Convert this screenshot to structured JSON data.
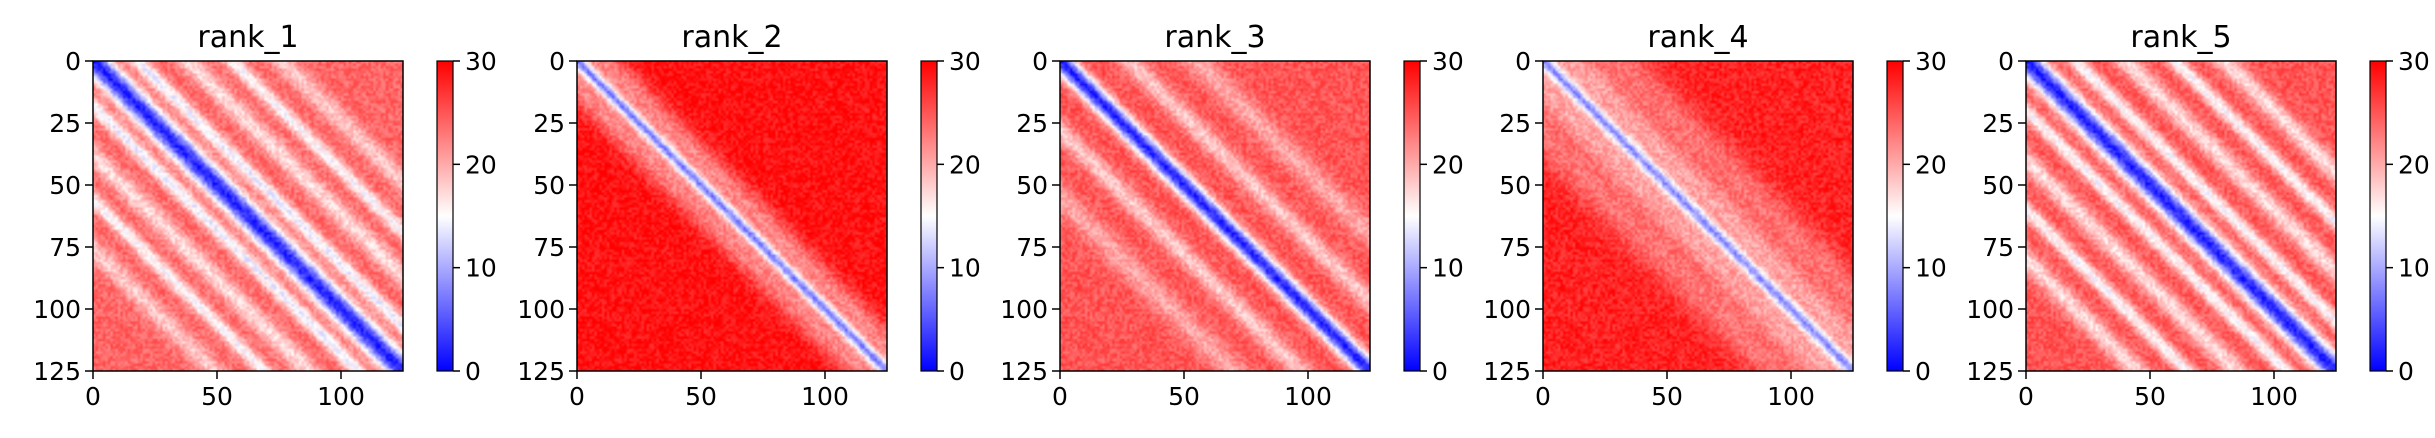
{
  "chart_data": [
    {
      "type": "heatmap",
      "title": "rank_1",
      "xlim": [
        0,
        125
      ],
      "ylim": [
        125,
        0
      ],
      "x_ticks": [
        "0",
        "50",
        "100"
      ],
      "y_ticks": [
        "0",
        "25",
        "50",
        "75",
        "100",
        "125"
      ],
      "colorbar": {
        "range": [
          0,
          30
        ],
        "ticks": [
          "0",
          "10",
          "20",
          "30"
        ],
        "colormap": "bwr"
      },
      "matrix_size": 125,
      "pattern": {
        "background": 24,
        "diagonal_width": 5,
        "off_diagonal_bands": [
          {
            "offset": 18,
            "value": 14,
            "width": 3
          },
          {
            "offset": 38,
            "value": 17,
            "width": 4
          },
          {
            "offset": 56,
            "value": 15,
            "width": 3
          },
          {
            "offset": 76,
            "value": 18,
            "width": 4
          }
        ]
      }
    },
    {
      "type": "heatmap",
      "title": "rank_2",
      "xlim": [
        0,
        125
      ],
      "ylim": [
        125,
        0
      ],
      "x_ticks": [
        "0",
        "50",
        "100"
      ],
      "y_ticks": [
        "0",
        "25",
        "50",
        "75",
        "100",
        "125"
      ],
      "colorbar": {
        "range": [
          0,
          30
        ],
        "ticks": [
          "0",
          "10",
          "20",
          "30"
        ],
        "colormap": "bwr"
      },
      "matrix_size": 125,
      "pattern": {
        "background": 29,
        "diagonal_width": 4,
        "off_diagonal_bands": [
          {
            "offset": 10,
            "value": 22,
            "width": 6
          }
        ]
      }
    },
    {
      "type": "heatmap",
      "title": "rank_3",
      "xlim": [
        0,
        125
      ],
      "ylim": [
        125,
        0
      ],
      "x_ticks": [
        "0",
        "50",
        "100"
      ],
      "y_ticks": [
        "0",
        "25",
        "50",
        "75",
        "100",
        "125"
      ],
      "colorbar": {
        "range": [
          0,
          30
        ],
        "ticks": [
          "0",
          "10",
          "20",
          "30"
        ],
        "colormap": "bwr"
      },
      "matrix_size": 125,
      "pattern": {
        "background": 25,
        "diagonal_width": 4,
        "off_diagonal_bands": [
          {
            "offset": 28,
            "value": 18,
            "width": 4
          },
          {
            "offset": 55,
            "value": 20,
            "width": 5
          }
        ]
      }
    },
    {
      "type": "heatmap",
      "title": "rank_4",
      "xlim": [
        0,
        125
      ],
      "ylim": [
        125,
        0
      ],
      "x_ticks": [
        "0",
        "50",
        "100"
      ],
      "y_ticks": [
        "0",
        "25",
        "50",
        "75",
        "100",
        "125"
      ],
      "colorbar": {
        "range": [
          0,
          30
        ],
        "ticks": [
          "0",
          "10",
          "20",
          "30"
        ],
        "colormap": "bwr"
      },
      "matrix_size": 125,
      "pattern": {
        "background": 28,
        "diagonal_width": 4,
        "off_diagonal_bands": [
          {
            "offset": 12,
            "value": 20,
            "width": 8
          },
          {
            "offset": 30,
            "value": 23,
            "width": 8
          }
        ]
      }
    },
    {
      "type": "heatmap",
      "title": "rank_5",
      "xlim": [
        0,
        125
      ],
      "ylim": [
        125,
        0
      ],
      "x_ticks": [
        "0",
        "50",
        "100"
      ],
      "y_ticks": [
        "0",
        "25",
        "50",
        "75",
        "100",
        "125"
      ],
      "colorbar": {
        "range": [
          0,
          30
        ],
        "ticks": [
          "0",
          "10",
          "20",
          "30"
        ],
        "colormap": "bwr"
      },
      "matrix_size": 125,
      "pattern": {
        "background": 25,
        "diagonal_width": 5,
        "off_diagonal_bands": [
          {
            "offset": 20,
            "value": 15,
            "width": 3
          },
          {
            "offset": 40,
            "value": 17,
            "width": 4
          },
          {
            "offset": 60,
            "value": 15,
            "width": 3
          },
          {
            "offset": 80,
            "value": 17,
            "width": 4
          }
        ]
      }
    }
  ]
}
